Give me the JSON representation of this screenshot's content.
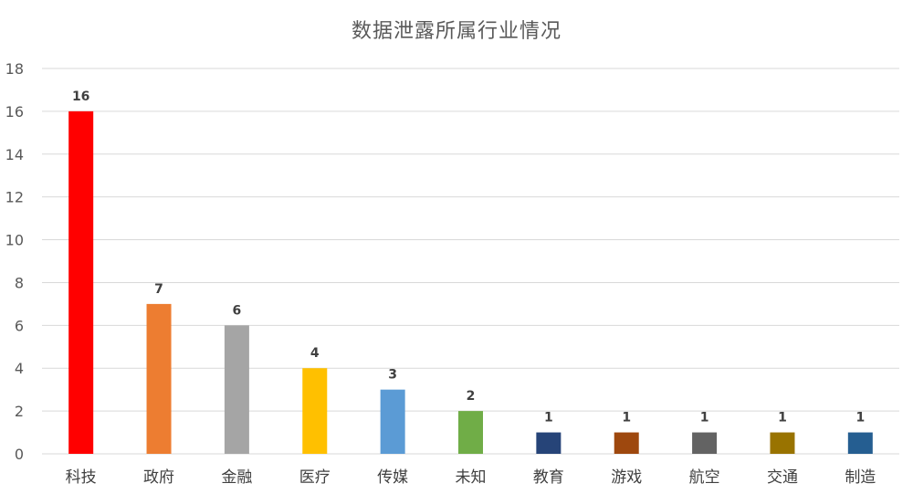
{
  "chart_data": {
    "type": "bar",
    "title": "数据泄露所属行业情况",
    "categories": [
      "科技",
      "政府",
      "金融",
      "医疗",
      "传媒",
      "未知",
      "教育",
      "游戏",
      "航空",
      "交通",
      "制造"
    ],
    "values": [
      16,
      7,
      6,
      4,
      3,
      2,
      1,
      1,
      1,
      1,
      1
    ],
    "colors": [
      "#ff0000",
      "#ed7d31",
      "#a5a5a5",
      "#ffc000",
      "#5b9bd5",
      "#70ad47",
      "#264478",
      "#9e480e",
      "#636363",
      "#997300",
      "#255e91"
    ],
    "ylim": [
      0,
      18
    ],
    "yticks": [
      0,
      2,
      4,
      6,
      8,
      10,
      12,
      14,
      16,
      18
    ],
    "grid": true,
    "legend": "none",
    "xlabel": "",
    "ylabel": ""
  }
}
